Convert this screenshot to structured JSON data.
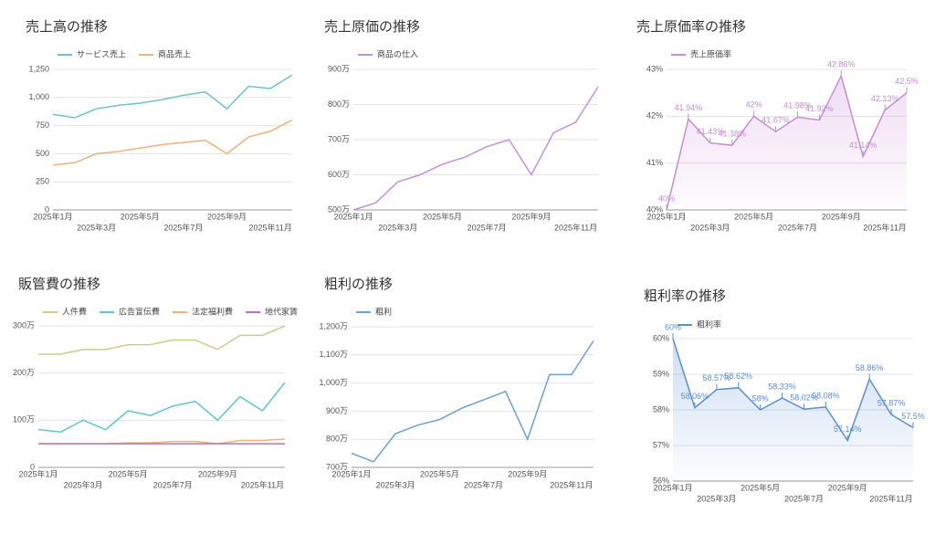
{
  "chart_data": [
    {
      "type": "line",
      "title": "売上高の推移",
      "categories": [
        "2025年1月",
        null,
        "2025年3月",
        null,
        "2025年5月",
        null,
        "2025年7月",
        null,
        "2025年9月",
        null,
        "2025年11月",
        null
      ],
      "series": [
        {
          "name": "サービス売上",
          "color": "#6cc3cf",
          "values": [
            850,
            820,
            900,
            930,
            950,
            980,
            1020,
            1050,
            900,
            1100,
            1080,
            1200
          ]
        },
        {
          "name": "商品売上",
          "color": "#f2b07c",
          "values": [
            400,
            420,
            500,
            520,
            550,
            580,
            600,
            620,
            500,
            650,
            700,
            800
          ]
        }
      ],
      "ylim": [
        0,
        1250
      ],
      "yticks": [
        0,
        250,
        500,
        750,
        {
          "value": 1000,
          "label": "1,000"
        },
        {
          "value": 1250,
          "label": "1,250"
        }
      ],
      "grid": true
    },
    {
      "type": "line",
      "title": "売上原価の推移",
      "categories": [
        "2025年1月",
        null,
        "2025年3月",
        null,
        "2025年5月",
        null,
        "2025年7月",
        null,
        "2025年9月",
        null,
        "2025年11月",
        null
      ],
      "series": [
        {
          "name": "商品の仕入",
          "color": "#c492d8",
          "values": [
            500,
            520,
            580,
            600,
            630,
            650,
            680,
            700,
            600,
            720,
            750,
            850
          ]
        }
      ],
      "ylim": [
        500,
        900
      ],
      "yticks": [
        {
          "value": 500,
          "label": "500万"
        },
        {
          "value": 600,
          "label": "600万"
        },
        {
          "value": 700,
          "label": "700万"
        },
        {
          "value": 800,
          "label": "800万"
        },
        {
          "value": 900,
          "label": "900万"
        }
      ],
      "grid": true
    },
    {
      "type": "area",
      "title": "売上原価率の推移",
      "categories": [
        "2025年1月",
        null,
        "2025年3月",
        null,
        "2025年5月",
        null,
        "2025年7月",
        null,
        "2025年9月",
        null,
        "2025年11月",
        null
      ],
      "series": [
        {
          "name": "売上原価率",
          "color": "#c98bd6",
          "values": [
            40,
            41.94,
            41.43,
            41.38,
            42,
            41.67,
            41.98,
            41.92,
            42.86,
            41.14,
            42.13,
            42.5
          ],
          "value_labels": [
            "40%",
            "41.94%",
            "41.43%",
            "41.38%",
            "42%",
            "41.67%",
            "41.98%",
            "41.92%",
            "42.86%",
            "41.14%",
            "42.13%",
            "42.5%"
          ]
        }
      ],
      "ylim": [
        40,
        43
      ],
      "yticks": [
        {
          "value": 40,
          "label": "40%"
        },
        {
          "value": 41,
          "label": "41%"
        },
        {
          "value": 42,
          "label": "42%"
        },
        {
          "value": 43,
          "label": "43%"
        }
      ],
      "grid": true
    },
    {
      "type": "line",
      "title": "販管費の推移",
      "categories": [
        "2025年1月",
        null,
        "2025年3月",
        null,
        "2025年5月",
        null,
        "2025年7月",
        null,
        "2025年9月",
        null,
        "2025年11月",
        null
      ],
      "series": [
        {
          "name": "人件費",
          "color": "#c8cf8e",
          "values": [
            240,
            240,
            250,
            250,
            260,
            260,
            270,
            270,
            250,
            280,
            280,
            300
          ]
        },
        {
          "name": "広告宣伝費",
          "color": "#5fc5d1",
          "values": [
            80,
            75,
            100,
            80,
            120,
            110,
            130,
            140,
            100,
            150,
            120,
            180
          ]
        },
        {
          "name": "法定福利費",
          "color": "#f2b07c",
          "values": [
            50,
            50,
            50,
            50,
            52,
            52,
            55,
            55,
            50,
            57,
            57,
            60
          ]
        },
        {
          "name": "地代家賃",
          "color": "#b07ab8",
          "values": [
            50,
            50,
            50,
            50,
            50,
            50,
            50,
            50,
            50,
            50,
            50,
            50
          ]
        }
      ],
      "ylim": [
        0,
        300
      ],
      "yticks": [
        0,
        {
          "value": 100,
          "label": "100万"
        },
        {
          "value": 200,
          "label": "200万"
        },
        {
          "value": 300,
          "label": "300万"
        }
      ],
      "grid": true
    },
    {
      "type": "line",
      "title": "粗利の推移",
      "categories": [
        "2025年1月",
        null,
        "2025年3月",
        null,
        "2025年5月",
        null,
        "2025年7月",
        null,
        "2025年9月",
        null,
        "2025年11月",
        null
      ],
      "series": [
        {
          "name": "粗利",
          "color": "#6e9fd9",
          "values": [
            750,
            720,
            820,
            850,
            870,
            910,
            940,
            970,
            800,
            1030,
            1030,
            1150
          ]
        }
      ],
      "ylim": [
        700,
        1200
      ],
      "yticks": [
        {
          "value": 700,
          "label": "700万"
        },
        {
          "value": 800,
          "label": "800万"
        },
        {
          "value": 900,
          "label": "900万"
        },
        {
          "value": 1000,
          "label": "1,000万"
        },
        {
          "value": 1100,
          "label": "1,100万"
        },
        {
          "value": 1200,
          "label": "1,200万"
        }
      ],
      "grid": true
    },
    {
      "type": "area",
      "title": "粗利率の推移",
      "categories": [
        "2025年1月",
        null,
        "2025年3月",
        null,
        "2025年5月",
        null,
        "2025年7月",
        null,
        "2025年9月",
        null,
        "2025年11月",
        null
      ],
      "series": [
        {
          "name": "粗利率",
          "color": "#5b8fd6",
          "values": [
            60,
            58.06,
            58.57,
            58.62,
            58,
            58.33,
            58.02,
            58.08,
            57.14,
            58.86,
            57.87,
            57.5
          ],
          "value_labels": [
            "60%",
            "58.06%",
            "58.57%",
            "58.62%",
            "58%",
            "58.33%",
            "58.02%",
            "58.08%",
            "57.14%",
            "58.86%",
            "57.87%",
            "57.5%"
          ]
        }
      ],
      "ylim": [
        56,
        60
      ],
      "yticks": [
        {
          "value": 56,
          "label": "56%"
        },
        {
          "value": 57,
          "label": "57%"
        },
        {
          "value": 58,
          "label": "58%"
        },
        {
          "value": 59,
          "label": "59%"
        },
        {
          "value": 60,
          "label": "60%"
        }
      ],
      "grid": true
    }
  ]
}
